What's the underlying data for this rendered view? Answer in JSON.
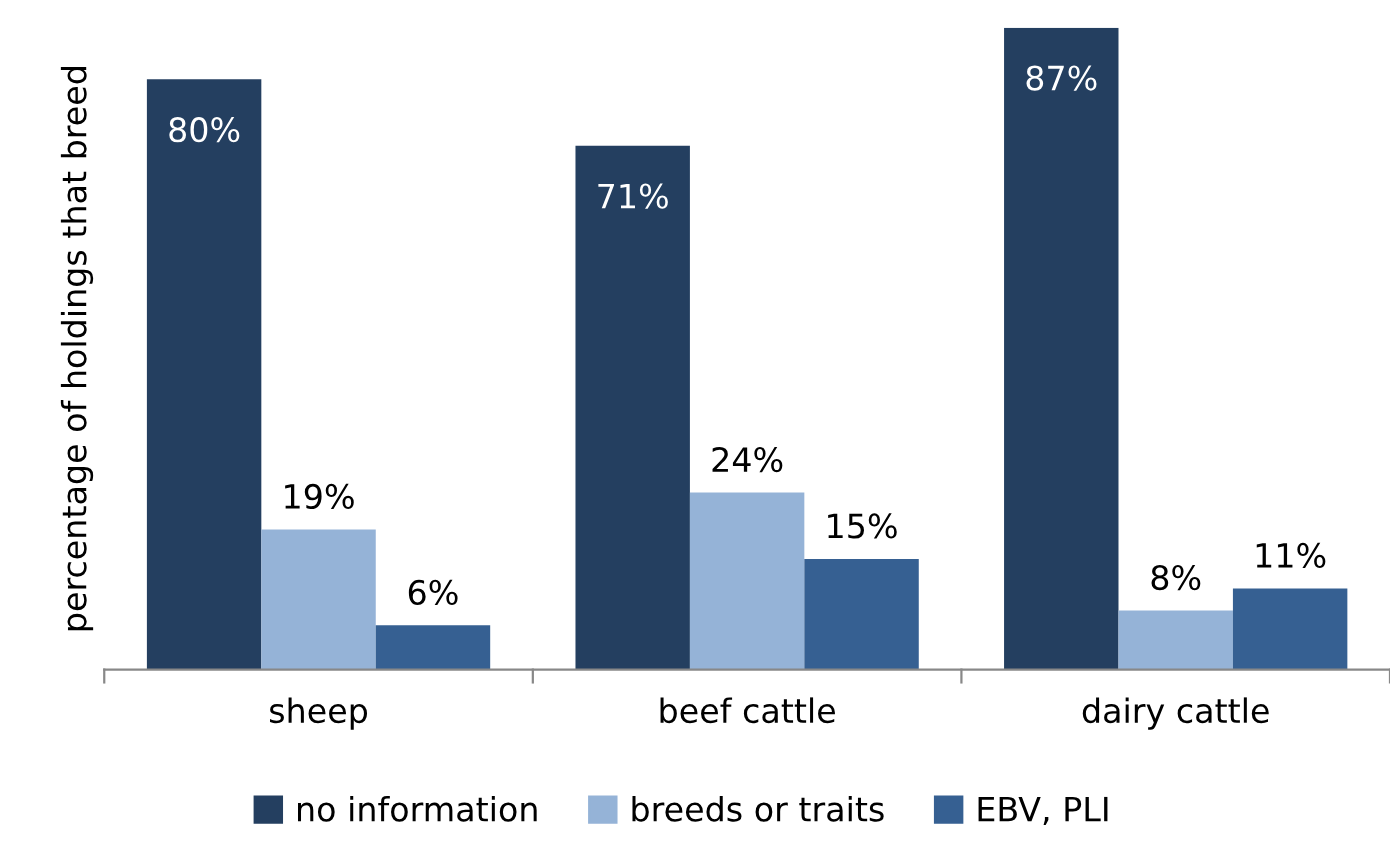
{
  "chart_data": {
    "type": "bar",
    "ylabel": "percentage of holdings that breed",
    "categories": [
      "sheep",
      "beef cattle",
      "dairy cattle"
    ],
    "series": [
      {
        "name": "no information",
        "color": "#243f60",
        "values": [
          80,
          71,
          87
        ],
        "value_labels": [
          "80%",
          "71%",
          "87%"
        ]
      },
      {
        "name": "breeds or traits",
        "color": "#95b3d7",
        "values": [
          19,
          24,
          8
        ],
        "value_labels": [
          "19%",
          "24%",
          "8%"
        ]
      },
      {
        "name": "EBV, PLI",
        "color": "#366092",
        "values": [
          6,
          15,
          11
        ],
        "value_labels": [
          "6%",
          "15%",
          "11%"
        ]
      }
    ],
    "legend": "bottom",
    "grid": false
  }
}
